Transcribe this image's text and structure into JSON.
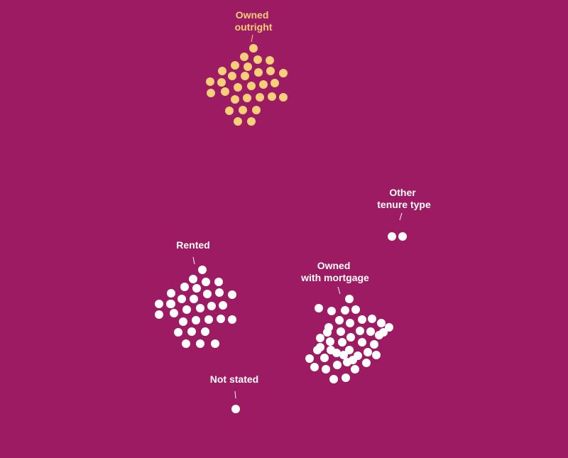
{
  "colors": {
    "background": "#9d1b62",
    "highlight": "#f6cf78",
    "default": "#ffffff"
  },
  "chart_data": {
    "type": "scatter",
    "title": "",
    "xlabel": "",
    "ylabel": "",
    "grid": false,
    "legend": "none",
    "groups": [
      {
        "label_lines": [
          "Owned",
          "outright"
        ],
        "count": 30,
        "color": "highlight"
      },
      {
        "label_lines": [
          "Other",
          "tenure type"
        ],
        "count": 2,
        "color": "default"
      },
      {
        "label_lines": [
          "Rented"
        ],
        "count": 32,
        "color": "default"
      },
      {
        "label_lines": [
          "Owned",
          "with mortgage"
        ],
        "count": 44,
        "color": "default"
      },
      {
        "label_lines": [
          "Not stated"
        ],
        "count": 1,
        "color": "default"
      }
    ]
  }
}
